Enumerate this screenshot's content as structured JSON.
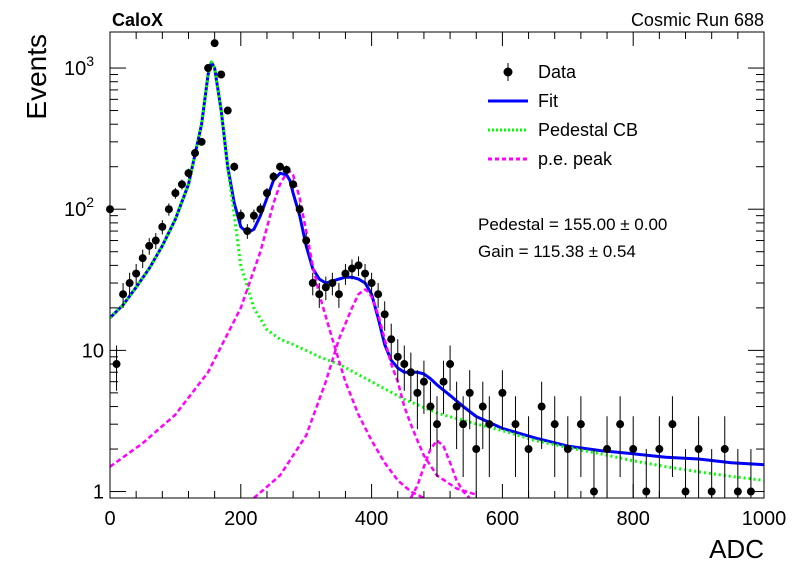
{
  "chart_data": {
    "type": "scatter",
    "title_left": "CaloX",
    "title_right": "Cosmic Run 688",
    "xlabel": "ADC",
    "ylabel": "Events",
    "xlim": [
      0,
      1000
    ],
    "ylim": [
      0.9,
      1800
    ],
    "yscale": "log",
    "x_ticks": [
      "0",
      "200",
      "400",
      "600",
      "800",
      "1000"
    ],
    "y_ticks": [
      {
        "value": 1,
        "label": "1"
      },
      {
        "value": 10,
        "label": "10"
      },
      {
        "value": 100,
        "base": "10",
        "exp": "2"
      },
      {
        "value": 1000,
        "base": "10",
        "exp": "3"
      }
    ],
    "legend": {
      "placement": "top-right",
      "entries": [
        {
          "label": "Data",
          "style": "marker",
          "color": "#000000"
        },
        {
          "label": "Fit",
          "style": "solid",
          "color": "#0000ff"
        },
        {
          "label": "Pedestal CB",
          "style": "dotted",
          "color": "#00ff00"
        },
        {
          "label": "p.e. peak",
          "style": "dashed",
          "color": "#ff00ff"
        }
      ]
    },
    "annotations": [
      "Pedestal = 155.00 ± 0.00",
      "Gain = 115.38 ± 0.54"
    ],
    "series": [
      {
        "name": "Data",
        "color": "#000000",
        "x": [
          0,
          10,
          20,
          30,
          40,
          50,
          60,
          70,
          80,
          90,
          100,
          110,
          120,
          130,
          140,
          150,
          160,
          170,
          180,
          190,
          200,
          210,
          220,
          230,
          240,
          250,
          260,
          270,
          280,
          290,
          300,
          310,
          320,
          330,
          340,
          350,
          360,
          370,
          380,
          390,
          400,
          410,
          420,
          430,
          440,
          450,
          460,
          470,
          480,
          490,
          500,
          510,
          520,
          530,
          540,
          550,
          560,
          570,
          580,
          600,
          620,
          640,
          660,
          680,
          700,
          720,
          740,
          760,
          780,
          800,
          820,
          840,
          860,
          880,
          900,
          920,
          940,
          960,
          980
        ],
        "y": [
          100,
          8,
          25,
          30,
          35,
          45,
          55,
          60,
          75,
          100,
          130,
          150,
          180,
          250,
          300,
          1000,
          1500,
          900,
          500,
          200,
          90,
          70,
          90,
          100,
          130,
          170,
          200,
          190,
          150,
          100,
          60,
          30,
          25,
          28,
          30,
          25,
          35,
          38,
          40,
          35,
          30,
          25,
          18,
          12,
          9,
          8,
          7,
          5,
          6,
          4,
          3,
          6,
          8,
          4,
          3,
          5,
          2,
          4,
          3,
          5,
          3,
          2,
          4,
          3,
          2,
          3,
          1,
          2,
          3,
          2,
          1,
          2,
          3,
          1,
          2,
          1,
          2,
          1,
          1
        ]
      },
      {
        "name": "Fit",
        "color": "#0000ff",
        "x": [
          0,
          20,
          40,
          60,
          80,
          100,
          120,
          140,
          150,
          155,
          160,
          170,
          180,
          190,
          200,
          210,
          220,
          230,
          240,
          250,
          260,
          270,
          275,
          280,
          290,
          300,
          310,
          320,
          330,
          340,
          350,
          360,
          370,
          380,
          390,
          400,
          410,
          420,
          430,
          440,
          450,
          460,
          470,
          480,
          490,
          500,
          520,
          540,
          560,
          600,
          650,
          700,
          750,
          800,
          850,
          900,
          950,
          1000
        ],
        "y": [
          17,
          21,
          28,
          38,
          55,
          85,
          150,
          400,
          900,
          1100,
          1000,
          500,
          200,
          110,
          75,
          68,
          72,
          90,
          120,
          160,
          180,
          175,
          160,
          130,
          90,
          55,
          38,
          32,
          30,
          31,
          32,
          33,
          33,
          32,
          30,
          25,
          17,
          11,
          8.5,
          7.5,
          7,
          7,
          7,
          6.8,
          6.3,
          5.7,
          4.8,
          4,
          3.4,
          2.8,
          2.4,
          2.1,
          1.95,
          1.85,
          1.75,
          1.7,
          1.6,
          1.55
        ]
      },
      {
        "name": "Pedestal CB",
        "color": "#00ff00",
        "x": [
          0,
          20,
          40,
          60,
          80,
          100,
          120,
          140,
          150,
          155,
          160,
          170,
          180,
          190,
          200,
          220,
          240,
          260,
          280,
          300,
          320,
          350,
          400,
          450,
          500,
          550,
          600,
          650,
          700,
          750,
          800,
          850,
          900,
          950,
          1000
        ],
        "y": [
          17,
          21,
          28,
          38,
          55,
          85,
          150,
          400,
          900,
          1100,
          1000,
          500,
          200,
          90,
          40,
          20,
          14,
          12,
          11,
          10,
          9,
          8,
          6,
          4.5,
          3.6,
          3.1,
          2.7,
          2.3,
          2.05,
          1.85,
          1.65,
          1.5,
          1.38,
          1.28,
          1.2
        ]
      },
      {
        "name": "p.e. peak 1",
        "color": "#ff00ff",
        "x": [
          0,
          50,
          100,
          150,
          200,
          230,
          250,
          260,
          270,
          275,
          280,
          290,
          300,
          310,
          320,
          340,
          360,
          380,
          400,
          420,
          440,
          460,
          480,
          500
        ],
        "y": [
          1.5,
          2.2,
          3.5,
          7,
          20,
          50,
          110,
          150,
          180,
          185,
          175,
          120,
          70,
          40,
          25,
          12,
          6,
          3.5,
          2.3,
          1.6,
          1.2,
          1,
          0.9,
          0.85
        ]
      },
      {
        "name": "p.e. peak 2",
        "color": "#ff00ff",
        "x": [
          220,
          260,
          300,
          330,
          350,
          370,
          380,
          390,
          395,
          400,
          410,
          420,
          430,
          440,
          450,
          460,
          470,
          480,
          500,
          530,
          560
        ],
        "y": [
          0.9,
          1.3,
          2.5,
          6,
          12,
          20,
          25,
          27,
          26,
          24,
          18,
          12,
          8,
          6,
          4,
          3,
          2.3,
          1.8,
          1.3,
          1.05,
          0.95
        ]
      },
      {
        "name": "p.e. peak 3",
        "color": "#ff00ff",
        "x": [
          460,
          470,
          480,
          490,
          500,
          510,
          520,
          530,
          540,
          550
        ],
        "y": [
          0.9,
          1.1,
          1.5,
          2.0,
          2.3,
          2.1,
          1.6,
          1.2,
          1.0,
          0.9
        ]
      }
    ]
  }
}
